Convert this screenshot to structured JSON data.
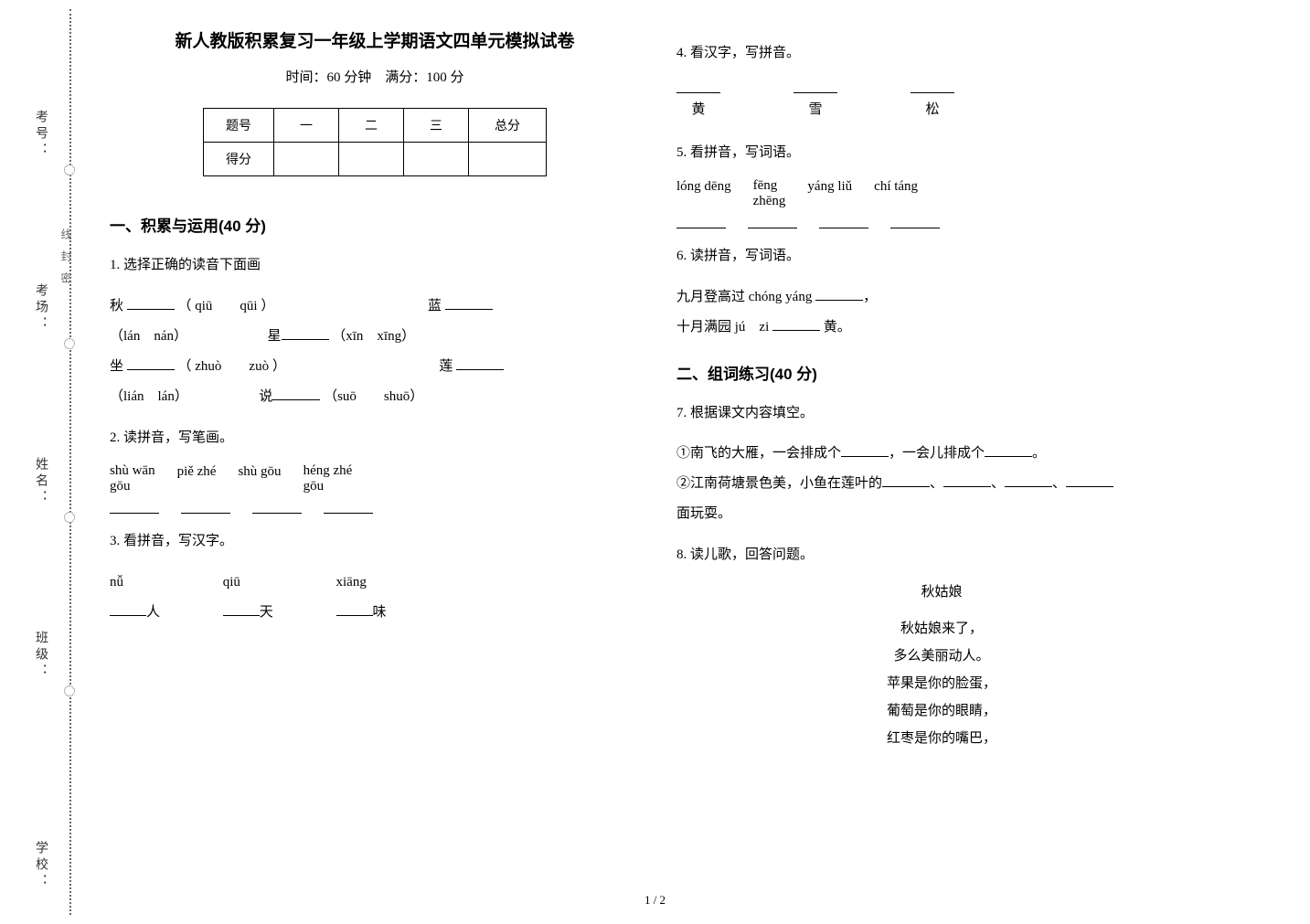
{
  "title": "新人教版积累复习一年级上学期语文四单元模拟试卷",
  "subtitle": "时间：60 分钟　满分：100 分",
  "score_table": {
    "headers": [
      "题号",
      "一",
      "二",
      "三",
      "总分"
    ],
    "row2_label": "得分"
  },
  "section1_h": "一、积累与运用(40 分)",
  "section2_h": "二、组词练习(40 分)",
  "q1": {
    "num": "1. ",
    "title": "选择正确的读音下面画",
    "line1a": "秋 ",
    "line1b": "（ qiū　　qūi ）",
    "line1c": "蓝 ",
    "line2a": "（lán　nán）",
    "line2b": "星",
    "line2c": "（xīn　xīng）",
    "line3a": "坐 ",
    "line3b": "（ zhuò　　zuò ）",
    "line3c": "莲 ",
    "line4a": "（lián　lán）",
    "line4b": "说",
    "line4c": "（suō　　shuō）"
  },
  "q2": {
    "num": "2. ",
    "title": "读拼音，写笔画。",
    "pinyins": [
      "shù wān\ngōu",
      "piě zhé",
      "shù gōu",
      "héng zhé\ngōu"
    ]
  },
  "q3": {
    "num": "3. ",
    "title": "看拼音，写汉字。",
    "items": [
      {
        "py": "nǚ",
        "suf": "人"
      },
      {
        "py": "qiū",
        "suf": "天"
      },
      {
        "py": "xiāng",
        "suf": "味"
      }
    ]
  },
  "q4": {
    "num": "4. ",
    "title": "看汉字，写拼音。",
    "chars": [
      "黄",
      "雪",
      "松"
    ]
  },
  "q5": {
    "num": "5. ",
    "title": "看拼音，写词语。",
    "pinyins": [
      "lóng dēng",
      "fēng\nzhēng",
      "yáng liǔ",
      "chí táng"
    ]
  },
  "q6": {
    "num": "6. ",
    "title": "读拼音，写词语。",
    "line1a": "九月登高过 chóng yáng ",
    "line1b": "，",
    "line2a": "十月满园 jú　zi ",
    "line2b": " 黄。"
  },
  "q7": {
    "num": "7. ",
    "title": "根据课文内容填空。",
    "line1a": "①南飞的大雁，一会排成个",
    "line1b": "，一会儿排成个",
    "line1c": "。",
    "line2a": "②江南荷塘景色美，小鱼在莲叶的",
    "line2sep": "、",
    "line2b": "面玩耍。"
  },
  "q8": {
    "num": "8. ",
    "title": "读儿歌，回答问题。",
    "poem_title": "秋姑娘",
    "poem_lines": [
      "秋姑娘来了，",
      "多么美丽动人。",
      "苹果是你的脸蛋，",
      "葡萄是你的眼睛，",
      "红枣是你的嘴巴，"
    ]
  },
  "footer": "1 / 2",
  "binding": {
    "labels": [
      "考号：",
      "考场：",
      "姓名：",
      "班级：",
      "学校："
    ],
    "seal": "线封密"
  },
  "colors": {
    "text": "#000000",
    "bg": "#ffffff",
    "dot": "#666666"
  }
}
